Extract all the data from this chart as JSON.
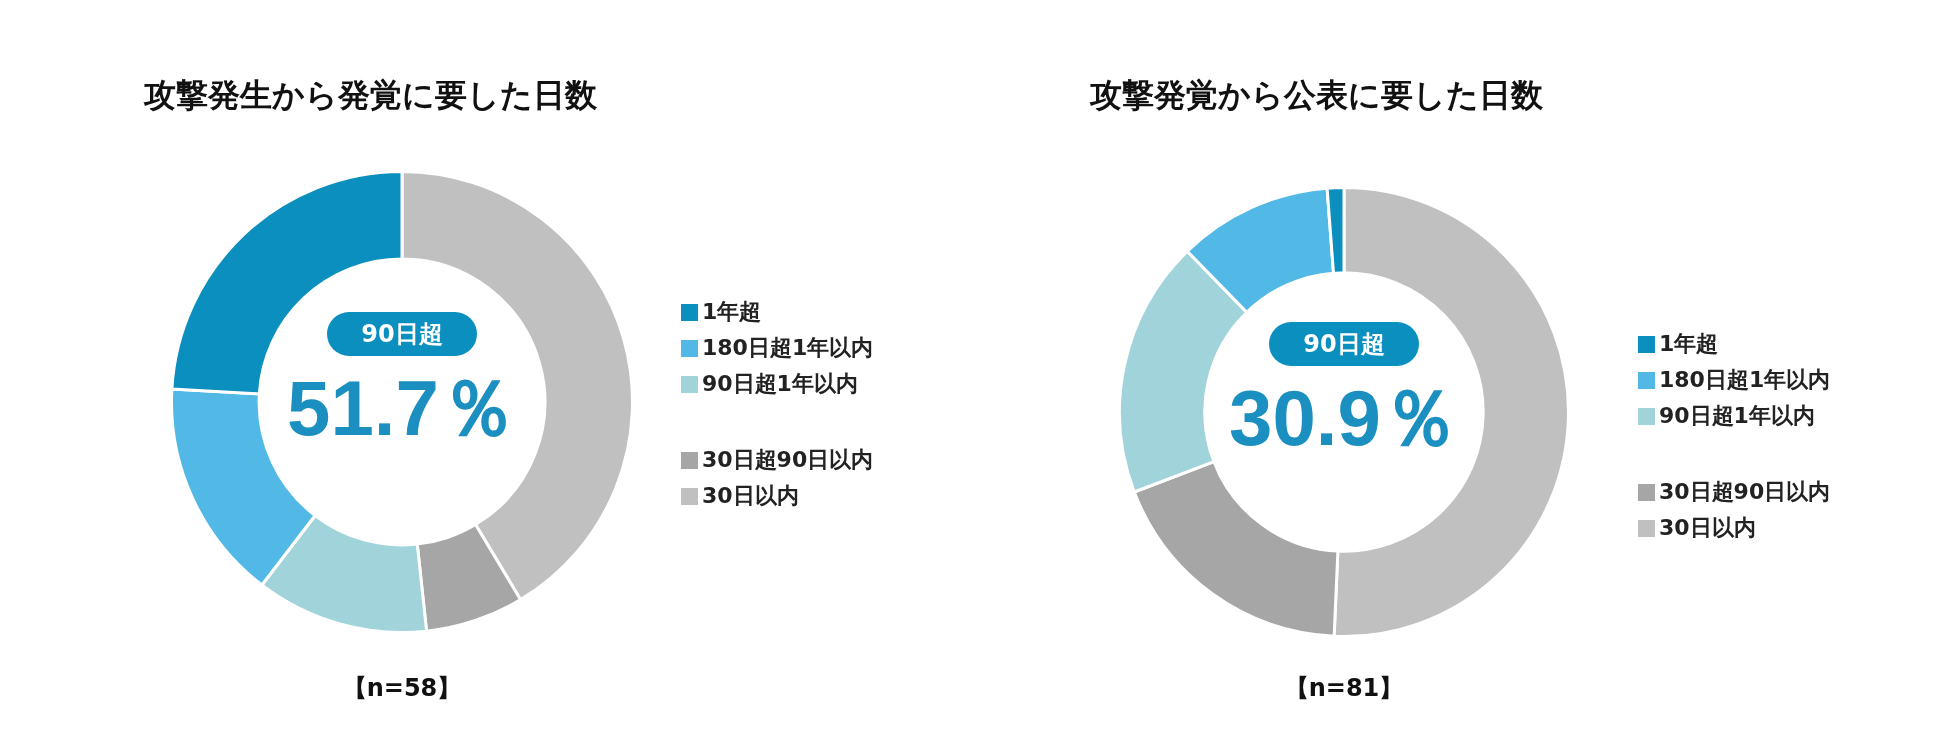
{
  "chart_data": [
    {
      "type": "donut",
      "title": "攻撃発生から発覚に要した日数",
      "categories": [
        "30日以内",
        "30日超90日以内",
        "90日超1年以内",
        "180日超1年以内",
        "1年超"
      ],
      "values": [
        41.4,
        6.9,
        12.1,
        15.5,
        24.1
      ],
      "colors": [
        "#c0c0c0",
        "#a6a6a6",
        "#a0d4da",
        "#52b9e6",
        "#0b8fbf"
      ],
      "legend": "right",
      "annotations": [
        "90日超",
        "51.7％",
        "【n=58】"
      ]
    },
    {
      "type": "donut",
      "title": "攻撃発覚から公表に要した日数",
      "categories": [
        "30日以内",
        "30日超90日以内",
        "90日超1年以内",
        "180日超1年以内",
        "1年超"
      ],
      "values": [
        50.7,
        18.5,
        18.5,
        11.1,
        1.2
      ],
      "colors": [
        "#c0c0c0",
        "#a6a6a6",
        "#a0d4da",
        "#52b9e6",
        "#0b8fbf"
      ],
      "legend": "right",
      "annotations": [
        "90日超",
        "30.9％",
        "【n=81】"
      ]
    }
  ]
}
